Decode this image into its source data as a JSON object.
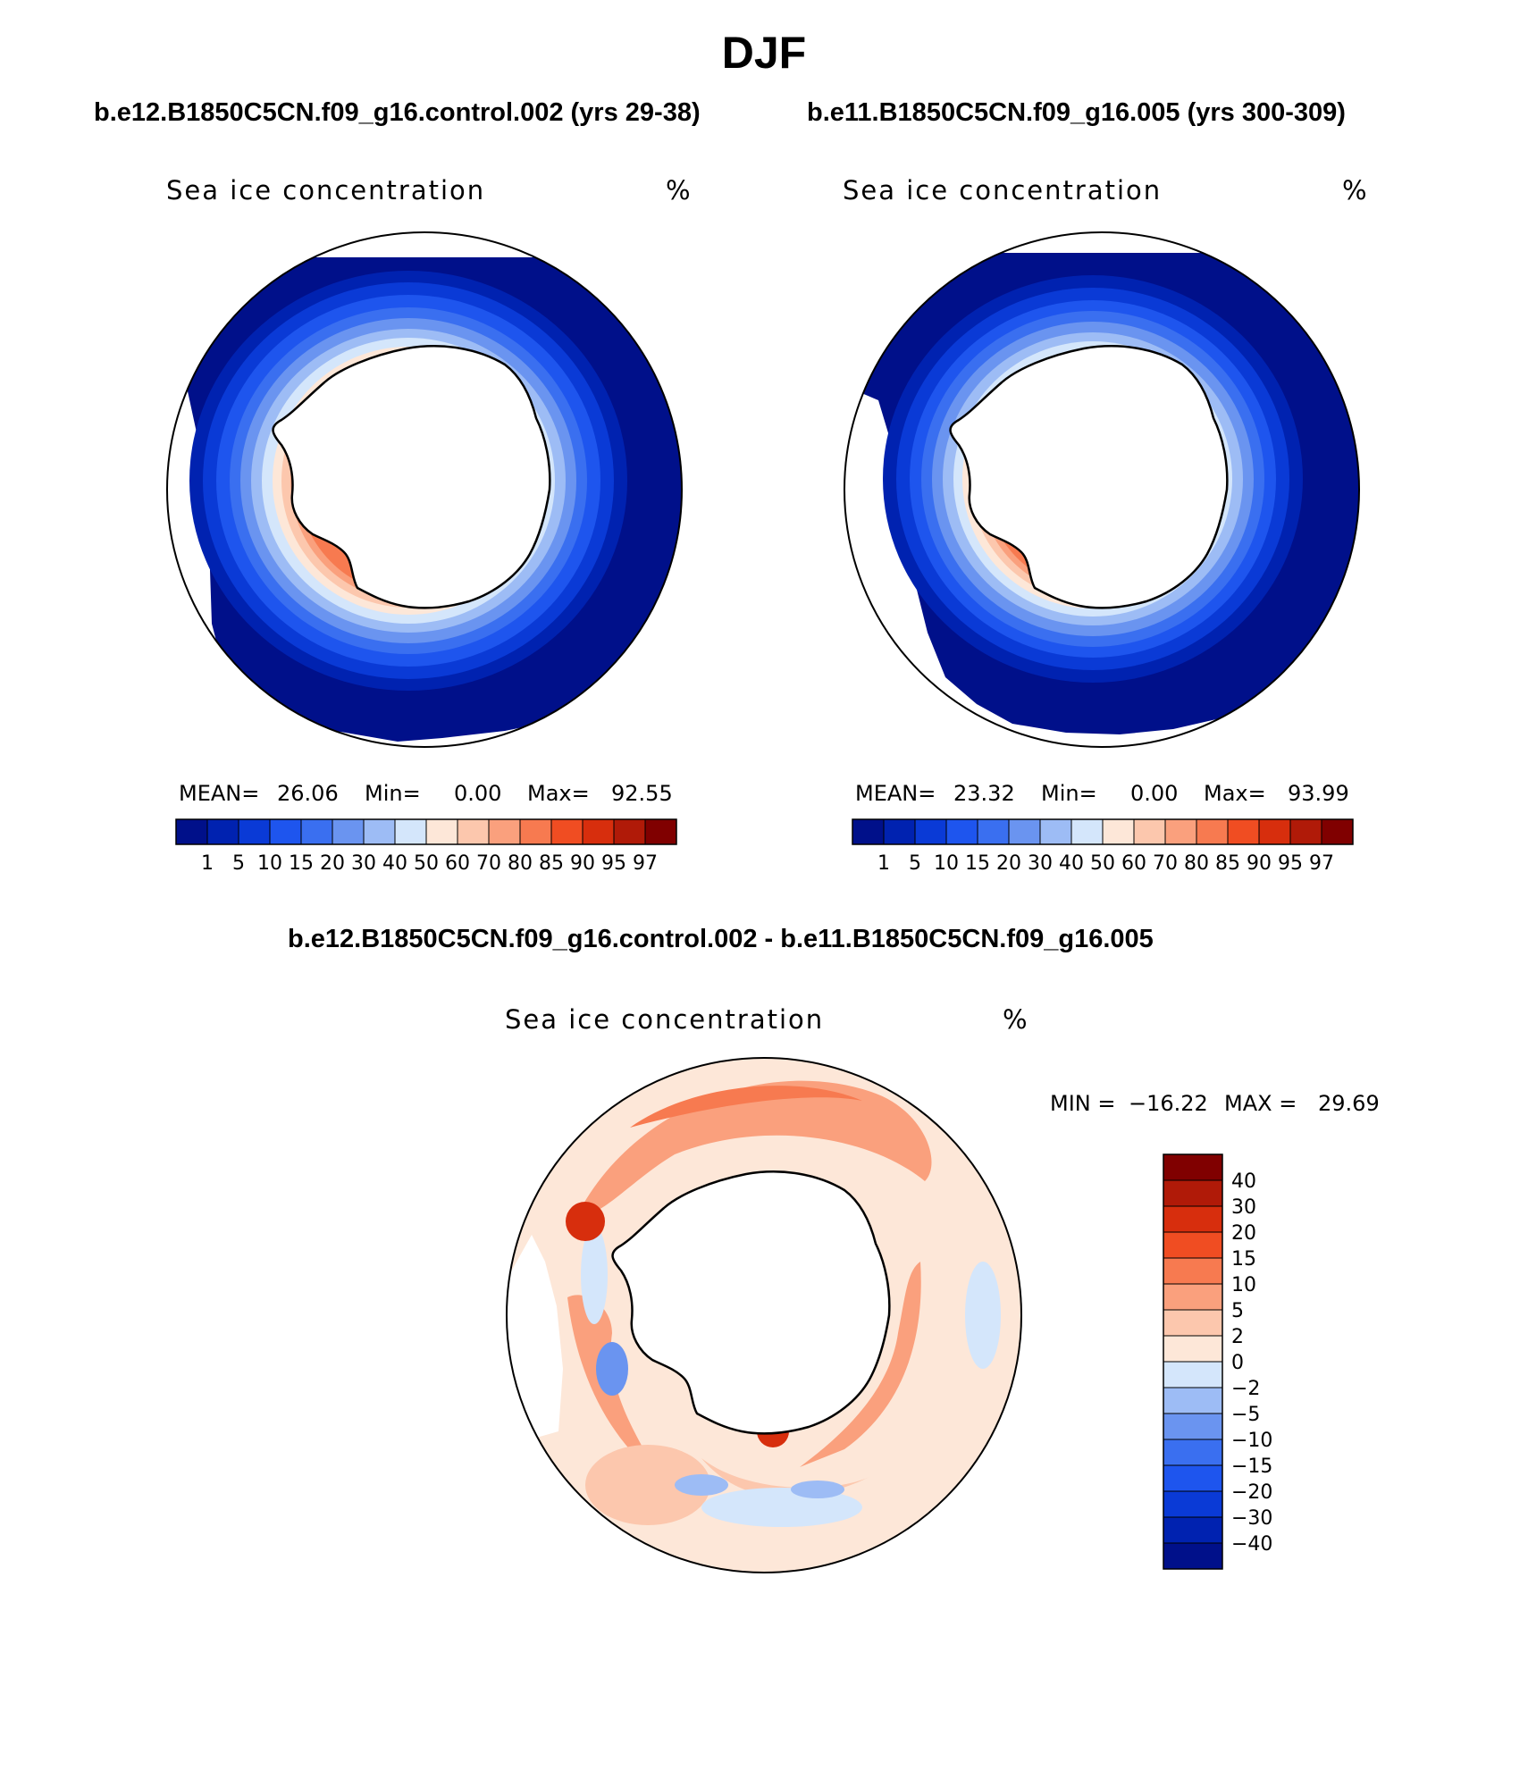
{
  "figure": {
    "title": "DJF"
  },
  "panels": [
    {
      "title": "b.e12.B1850C5CN.f09_g16.control.002 (yrs 29-38)",
      "variable": "Sea ice concentration",
      "units": "%",
      "mean_label": "MEAN=",
      "mean": "26.06",
      "min_label": "Min=",
      "min": "0.00",
      "max_label": "Max=",
      "max": "92.55"
    },
    {
      "title": "b.e11.B1850C5CN.f09_g16.005 (yrs 300-309)",
      "variable": "Sea ice concentration",
      "units": "%",
      "mean_label": "MEAN=",
      "mean": "23.32",
      "min_label": "Min=",
      "min": "0.00",
      "max_label": "Max=",
      "max": "93.99"
    }
  ],
  "difference_panel": {
    "title": "b.e12.B1850C5CN.f09_g16.control.002 - b.e11.B1850C5CN.f09_g16.005",
    "variable": "Sea ice concentration",
    "units": "%",
    "min_label": "MIN =",
    "min": "−16.22",
    "max_label": "MAX =",
    "max": "29.69"
  },
  "colorbar_abs": {
    "levels": [
      "1",
      "5",
      "10",
      "15",
      "20",
      "30",
      "40",
      "50",
      "60",
      "70",
      "80",
      "85",
      "90",
      "95",
      "97"
    ],
    "colors": [
      "#00108a",
      "#0022b0",
      "#0a3ad6",
      "#1e55ee",
      "#3a6ff0",
      "#6a94f0",
      "#9dbcf5",
      "#d4e6fb",
      "#fde7d8",
      "#fcc7ad",
      "#faa07d",
      "#f77a50",
      "#f04d22",
      "#d72e0d",
      "#b01a08",
      "#800000"
    ]
  },
  "colorbar_diff": {
    "levels": [
      "40",
      "30",
      "20",
      "15",
      "10",
      "5",
      "2",
      "0",
      "−2",
      "−5",
      "−10",
      "−15",
      "−20",
      "−30",
      "−40"
    ],
    "colors": [
      "#800000",
      "#b01a08",
      "#d72e0d",
      "#f04d22",
      "#f77a50",
      "#faa07d",
      "#fcc7ad",
      "#fde7d8",
      "#d4e6fb",
      "#9dbcf5",
      "#6a94f0",
      "#3a6ff0",
      "#1e55ee",
      "#0a3ad6",
      "#0022b0",
      "#00108a"
    ]
  }
}
